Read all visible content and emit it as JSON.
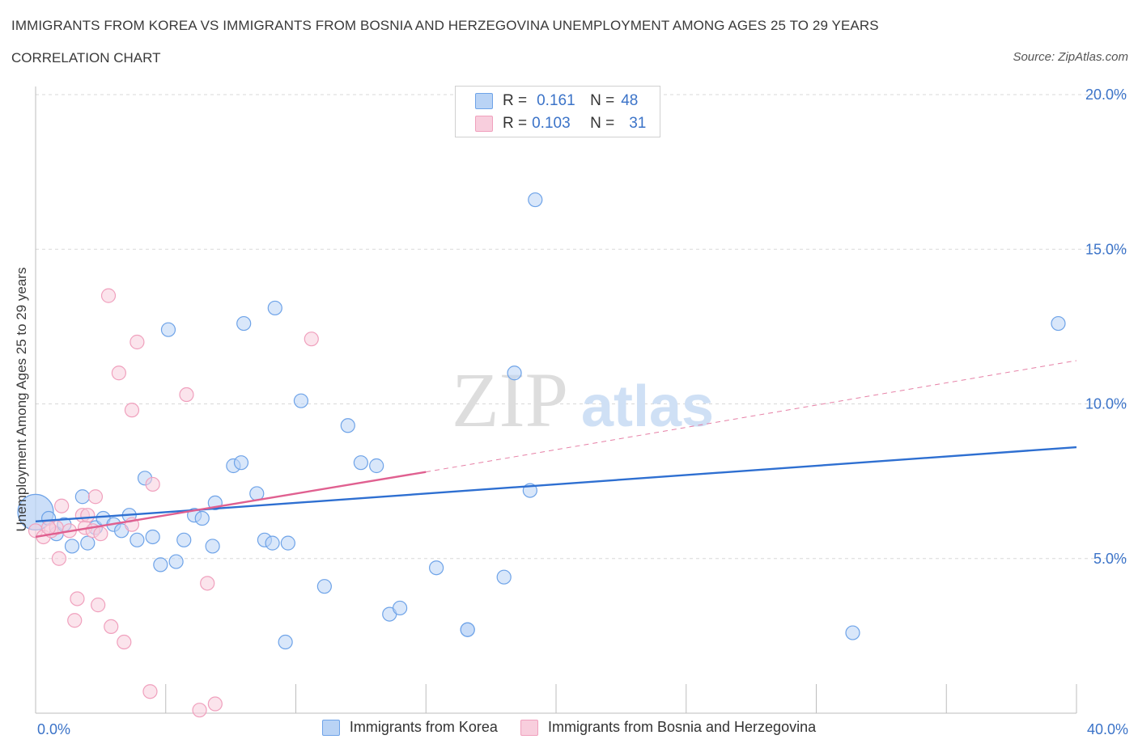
{
  "chart_data": {
    "type": "scatter",
    "title": "IMMIGRANTS FROM KOREA VS IMMIGRANTS FROM BOSNIA AND HERZEGOVINA UNEMPLOYMENT AMONG AGES 25 TO 29 YEARS",
    "subtitle": "CORRELATION CHART",
    "source": "Source: ZipAtlas.com",
    "xlabel": "",
    "ylabel": "Unemployment Among Ages 25 to 29 years",
    "xlim": [
      0,
      40
    ],
    "ylim": [
      0,
      20
    ],
    "x_tick_labels": [
      "0.0%",
      "40.0%"
    ],
    "y_ticks": [
      {
        "value": 5,
        "label": "5.0%"
      },
      {
        "value": 10,
        "label": "10.0%"
      },
      {
        "value": 15,
        "label": "15.0%"
      },
      {
        "value": 20,
        "label": "20.0%"
      }
    ],
    "grid": true,
    "watermark": "ZIPatlas",
    "legend_stats": [
      {
        "r_label": "R =",
        "r_value": "0.161",
        "n_label": "N =",
        "n_value": "48"
      },
      {
        "r_label": "R =",
        "r_value": "0.103",
        "n_label": "N =",
        "n_value": "31"
      }
    ],
    "series": [
      {
        "name": "Immigrants from Korea",
        "color": "#6ea3e8",
        "fill": "#b9d3f5",
        "line_color": "#2e6fd1",
        "trend": {
          "x": [
            0,
            40
          ],
          "y": [
            6.2,
            8.6
          ]
        },
        "points": [
          [
            0.0,
            6.5
          ],
          [
            0.5,
            6.3
          ],
          [
            0.8,
            5.8
          ],
          [
            1.1,
            6.1
          ],
          [
            1.4,
            5.4
          ],
          [
            1.8,
            7.0
          ],
          [
            2.0,
            5.5
          ],
          [
            2.3,
            6.0
          ],
          [
            2.6,
            6.3
          ],
          [
            3.0,
            6.1
          ],
          [
            3.3,
            5.9
          ],
          [
            3.6,
            6.4
          ],
          [
            3.9,
            5.6
          ],
          [
            4.2,
            7.6
          ],
          [
            4.5,
            5.7
          ],
          [
            4.8,
            4.8
          ],
          [
            5.1,
            12.4
          ],
          [
            5.4,
            4.9
          ],
          [
            5.7,
            5.6
          ],
          [
            6.1,
            6.4
          ],
          [
            6.4,
            6.3
          ],
          [
            6.8,
            5.4
          ],
          [
            6.9,
            6.8
          ],
          [
            7.6,
            8.0
          ],
          [
            7.9,
            8.1
          ],
          [
            8.0,
            12.6
          ],
          [
            8.5,
            7.1
          ],
          [
            8.8,
            5.6
          ],
          [
            9.1,
            5.5
          ],
          [
            9.2,
            13.1
          ],
          [
            9.6,
            2.3
          ],
          [
            9.7,
            5.5
          ],
          [
            10.2,
            10.1
          ],
          [
            11.1,
            4.1
          ],
          [
            12.0,
            9.3
          ],
          [
            12.5,
            8.1
          ],
          [
            13.1,
            8.0
          ],
          [
            13.6,
            3.2
          ],
          [
            14.0,
            3.4
          ],
          [
            15.4,
            4.7
          ],
          [
            16.6,
            2.7
          ],
          [
            16.6,
            2.7
          ],
          [
            18.0,
            4.4
          ],
          [
            18.4,
            11.0
          ],
          [
            19.0,
            7.2
          ],
          [
            19.2,
            16.6
          ],
          [
            31.4,
            2.6
          ],
          [
            39.3,
            12.6
          ]
        ]
      },
      {
        "name": "Immigrants from Bosnia and Herzegovina",
        "color": "#f0a0bd",
        "fill": "#f8cedd",
        "line_color": "#e06090",
        "trend": {
          "x": [
            0,
            15
          ],
          "y": [
            5.7,
            7.8
          ]
        },
        "trend_extension": {
          "x": [
            15,
            40
          ],
          "y": [
            7.8,
            11.4
          ]
        },
        "points": [
          [
            0.0,
            5.9
          ],
          [
            0.3,
            5.7
          ],
          [
            0.6,
            5.9
          ],
          [
            0.8,
            6.0
          ],
          [
            0.9,
            5.0
          ],
          [
            1.0,
            6.7
          ],
          [
            1.3,
            5.9
          ],
          [
            1.5,
            3.0
          ],
          [
            1.6,
            3.7
          ],
          [
            1.8,
            6.4
          ],
          [
            1.9,
            6.0
          ],
          [
            2.0,
            6.4
          ],
          [
            2.2,
            5.9
          ],
          [
            2.3,
            7.0
          ],
          [
            2.4,
            3.5
          ],
          [
            2.5,
            5.8
          ],
          [
            2.8,
            13.5
          ],
          [
            2.9,
            2.8
          ],
          [
            3.2,
            11.0
          ],
          [
            3.4,
            2.3
          ],
          [
            3.7,
            9.8
          ],
          [
            3.7,
            6.1
          ],
          [
            3.9,
            12.0
          ],
          [
            4.4,
            0.7
          ],
          [
            4.5,
            7.4
          ],
          [
            5.8,
            10.3
          ],
          [
            6.3,
            0.1
          ],
          [
            6.6,
            4.2
          ],
          [
            6.9,
            0.3
          ],
          [
            10.6,
            12.1
          ],
          [
            0.5,
            6.0
          ]
        ]
      }
    ]
  }
}
